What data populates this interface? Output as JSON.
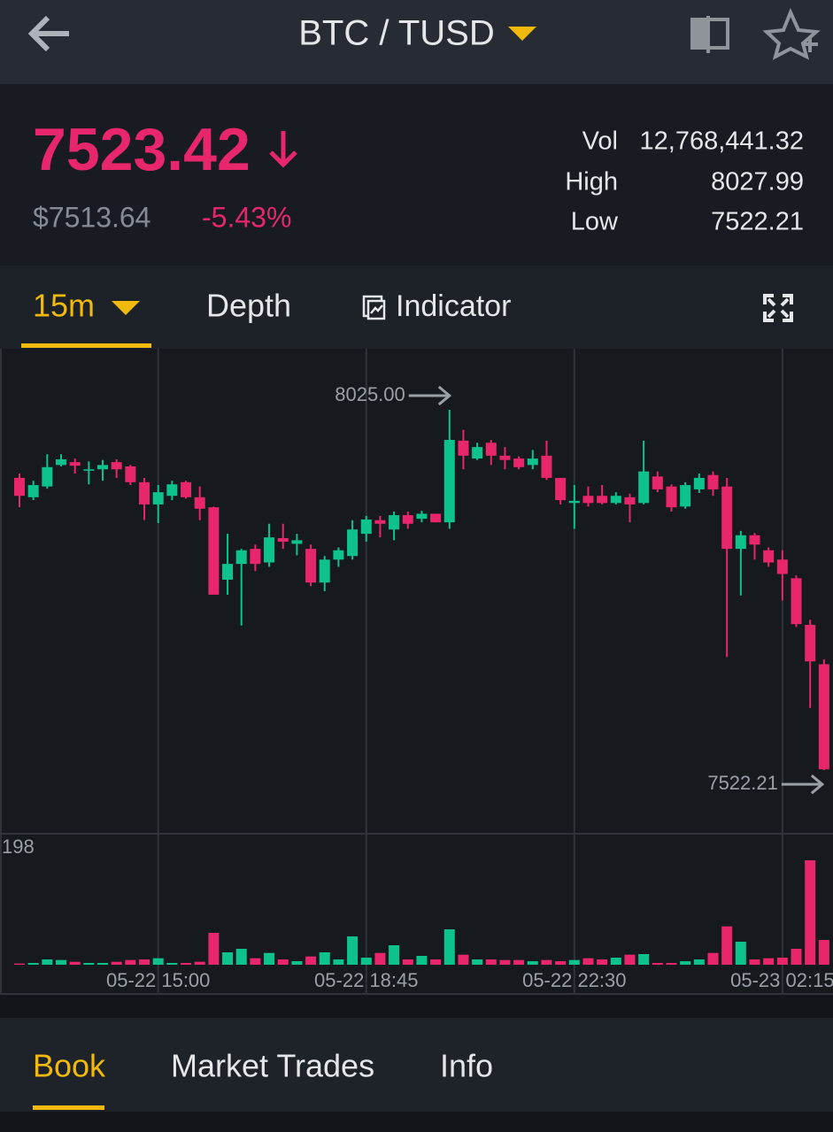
{
  "header": {
    "pair": "BTC / TUSD"
  },
  "ticker": {
    "price": "7523.42",
    "usd_price": "$7513.64",
    "change": "-5.43%",
    "stats": [
      {
        "label": "Vol",
        "value": "12,768,441.32"
      },
      {
        "label": "High",
        "value": "8027.99"
      },
      {
        "label": "Low",
        "value": "7522.21"
      }
    ]
  },
  "chart_tabs": {
    "interval": "15m",
    "depth": "Depth",
    "indicator": "Indicator"
  },
  "chart_data": {
    "type": "candlestick",
    "categories": [
      null,
      null,
      null,
      null,
      null,
      null,
      null,
      null,
      null,
      null,
      "05-22 15:00",
      null,
      null,
      null,
      null,
      null,
      null,
      null,
      null,
      null,
      null,
      null,
      null,
      null,
      null,
      "05-22 18:45",
      null,
      null,
      null,
      null,
      null,
      null,
      null,
      null,
      null,
      null,
      null,
      null,
      null,
      null,
      "05-22 22:30",
      null,
      null,
      null,
      null,
      null,
      null,
      null,
      null,
      null,
      null,
      null,
      null,
      null,
      null,
      "05-23 02:15",
      null,
      null,
      null
    ],
    "open": [
      7930,
      7903,
      7918,
      7948,
      7952,
      7940,
      7942,
      7952,
      7946,
      7924,
      7893,
      7905,
      7924,
      7903,
      7889,
      7788,
      7810,
      7831,
      7812,
      7846,
      7838,
      7831,
      7784,
      7816,
      7821,
      7852,
      7871,
      7858,
      7878,
      7873,
      7880,
      7868,
      7982,
      7957,
      7979,
      7961,
      7957,
      7948,
      7961,
      7930,
      7895,
      7905,
      7905,
      7895,
      7903,
      7895,
      7932,
      7918,
      7890,
      7914,
      7934,
      7918,
      7831,
      7850,
      7829,
      7816,
      7790,
      7725,
      7670
    ],
    "high": [
      7936,
      7926,
      7963,
      7963,
      7957,
      7953,
      7955,
      7956,
      7948,
      7930,
      7920,
      7926,
      7926,
      7918,
      7890,
      7852,
      7831,
      7837,
      7866,
      7866,
      7852,
      7837,
      7821,
      7833,
      7871,
      7877,
      7877,
      7883,
      7883,
      7884,
      7880,
      8025,
      7997,
      7979,
      7983,
      7973,
      7960,
      7969,
      7982,
      7930,
      7920,
      7918,
      7920,
      7910,
      7908,
      7982,
      7939,
      7921,
      7924,
      7936,
      7939,
      7930,
      7856,
      7853,
      7833,
      7829,
      7794,
      7732,
      7677
    ],
    "low": [
      7889,
      7899,
      7915,
      7946,
      7936,
      7921,
      7926,
      7930,
      7920,
      7871,
      7867,
      7899,
      7901,
      7871,
      7767,
      7767,
      7724,
      7800,
      7806,
      7831,
      7822,
      7779,
      7772,
      7806,
      7816,
      7841,
      7847,
      7843,
      7859,
      7868,
      7868,
      7859,
      7942,
      7955,
      7948,
      7942,
      7942,
      7942,
      7927,
      7893,
      7859,
      7890,
      7893,
      7893,
      7868,
      7893,
      7910,
      7883,
      7887,
      7909,
      7905,
      7680,
      7766,
      7816,
      7806,
      7759,
      7722,
      7609,
      7522.21
    ],
    "close": [
      7905,
      7920,
      7945,
      7956,
      7947,
      7942,
      7948,
      7942,
      7924,
      7893,
      7910,
      7921,
      7903,
      7887,
      7767,
      7810,
      7829,
      7810,
      7847,
      7841,
      7843,
      7784,
      7816,
      7829,
      7858,
      7872,
      7866,
      7878,
      7866,
      7880,
      7868,
      7983,
      7961,
      7973,
      7961,
      7955,
      7945,
      7957,
      7930,
      7899,
      7898,
      7895,
      7895,
      7905,
      7893,
      7939,
      7914,
      7889,
      7920,
      7930,
      7914,
      7831,
      7850,
      7837,
      7812,
      7796,
      7726,
      7674,
      7523.42
    ],
    "volume": [
      2,
      3,
      9,
      8,
      5,
      3,
      3,
      5,
      8,
      9,
      11,
      3,
      3,
      5,
      54,
      21,
      27,
      11,
      20,
      9,
      6,
      14,
      21,
      9,
      48,
      12,
      20,
      33,
      9,
      15,
      9,
      60,
      17,
      9,
      9,
      8,
      8,
      6,
      8,
      6,
      8,
      11,
      9,
      12,
      17,
      18,
      3,
      3,
      6,
      9,
      20,
      65,
      39,
      9,
      11,
      12,
      27,
      177,
      42
    ],
    "up_color": "#0ec28e",
    "down_color": "#e8266c",
    "ylim": [
      7436,
      8109
    ],
    "max_marker": {
      "value": 8025,
      "label": "8025.00"
    },
    "min_marker": {
      "value": 7522.21,
      "label": "7522.21"
    },
    "volume_ylim": [
      0,
      198
    ],
    "volume_yticks": [
      198
    ],
    "grid": true
  },
  "bottom_tabs": [
    "Book",
    "Market Trades",
    "Info"
  ]
}
